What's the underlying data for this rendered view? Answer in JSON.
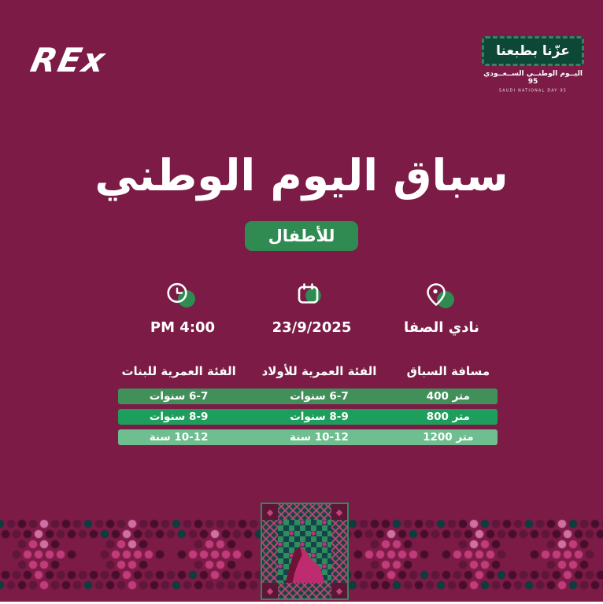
{
  "theme": {
    "bg": "#7C1B46",
    "green": "#2F8B51",
    "ndgreen": "#0D4836",
    "white": "#FFFFFF"
  },
  "brand": {
    "logo_text": "REx"
  },
  "national_day": {
    "badge_text": "عزّنا بطبعنا",
    "line1": "اليــوم الوطنــي الســعــودي 95",
    "line2": "SAUDI NATIONAL DAY 95"
  },
  "hero": {
    "title": "سباق اليوم الوطني",
    "badge": "للأطفال"
  },
  "info": [
    {
      "icon": "clock-icon",
      "label": "4:00 PM"
    },
    {
      "icon": "calendar-icon",
      "label": "23/9/2025"
    },
    {
      "icon": "location-icon",
      "label": "نادي الصفا"
    }
  ],
  "table": {
    "headers": {
      "distance": "مسافة السباق",
      "boys": "الفئة العمرية للأولاد",
      "girls": "الفئة العمرية للبنات"
    },
    "rows": [
      {
        "distance": "400 متر",
        "boys": "6-7 سنوات",
        "girls": "6-7 سنوات",
        "color": "#41905A"
      },
      {
        "distance": "800 متر",
        "boys": "8-9 سنوات",
        "girls": "8-9 سنوات",
        "color": "#1E9E5C"
      },
      {
        "distance": "1200 متر",
        "boys": "10-12 سنة",
        "girls": "10-12 سنة",
        "color": "#6FBE8F"
      }
    ]
  },
  "pattern": {
    "colors": {
      "pink": "#C13C7D",
      "light": "#D06FA2",
      "maroon": "#5E163A",
      "deep": "#470E2B",
      "teal": "#0E3C3F"
    }
  },
  "motif": {
    "frame": "#2E8B5C",
    "bgdark": "#14384A",
    "band": "#17463A",
    "corner": "#5E1637",
    "accent": "#C1457F",
    "checker1": "#2F8C5B",
    "checker2": "#14424D",
    "pinksq": "#B8337A",
    "mountain": "#BE2B6E",
    "shadow": "#6E1238",
    "corner_glyph": "◆"
  }
}
